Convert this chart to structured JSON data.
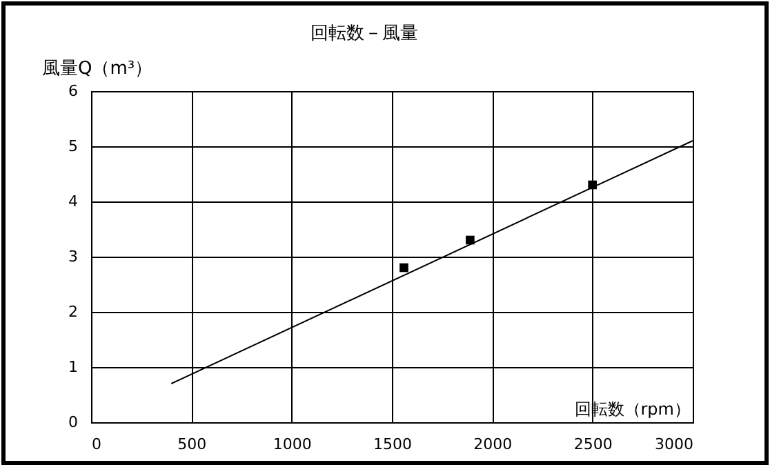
{
  "chart_data": {
    "type": "scatter",
    "title": "回転数－風量",
    "xlabel": "回転数（rpm）",
    "ylabel": "風量Q（m³）",
    "xlim": [
      0,
      3000
    ],
    "xticks": [
      0,
      500,
      1000,
      1500,
      2000,
      2500,
      3000
    ],
    "ylim": [
      0,
      6
    ],
    "yticks": [
      0,
      1,
      2,
      3,
      4,
      5,
      6
    ],
    "grid": true,
    "series": [
      {
        "marker": "square",
        "color": "#000000",
        "x": [
          1560,
          1890,
          2500
        ],
        "values": [
          2.8,
          3.3,
          4.3
        ]
      },
      {
        "type": "line",
        "color": "#000000",
        "x": [
          400,
          3000
        ],
        "values": [
          0.7,
          5.1
        ]
      }
    ]
  }
}
